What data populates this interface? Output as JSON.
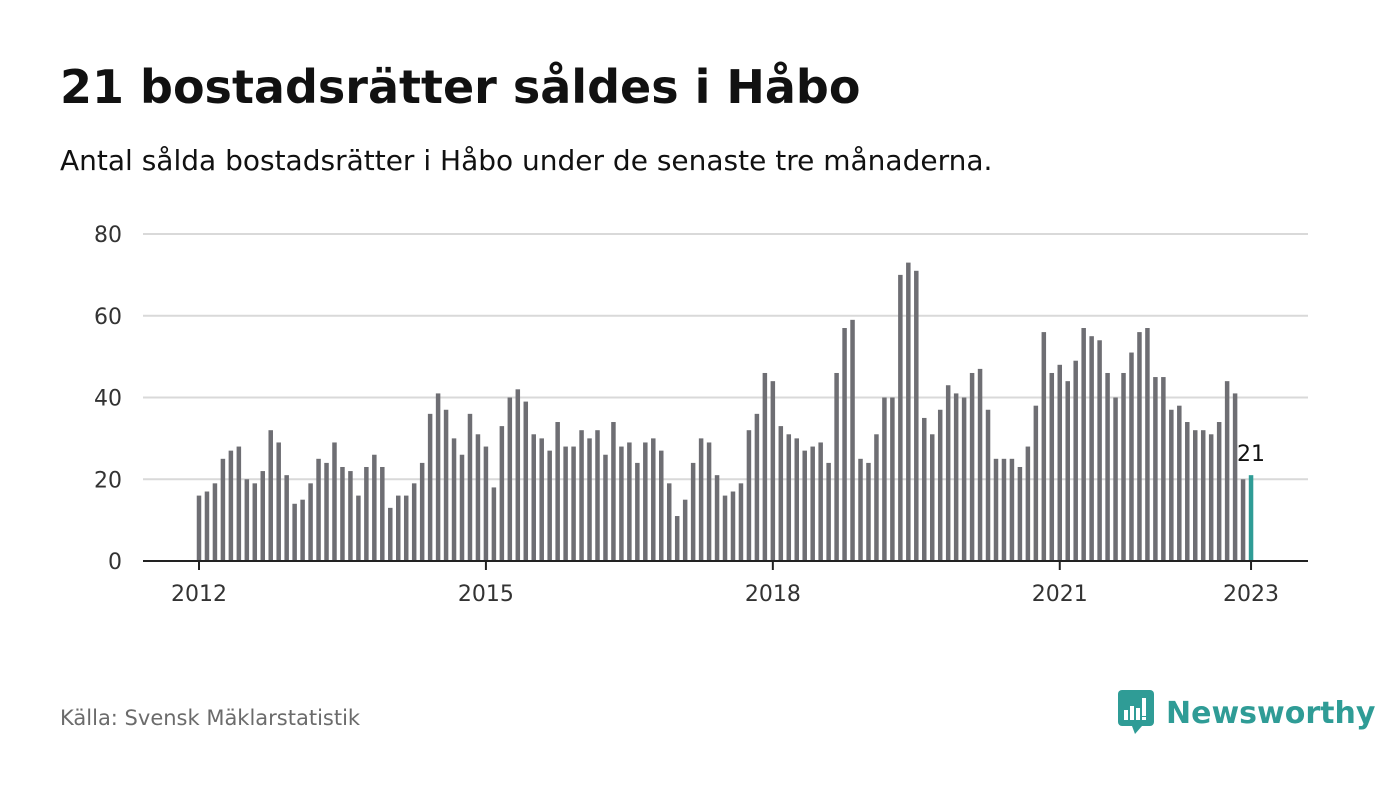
{
  "title": "21 bostadsrätter såldes i Håbo",
  "subtitle": "Antal sålda bostadsrätter i Håbo under de senaste tre månaderna.",
  "source": "Källa: Svensk Mäklarstatistik",
  "brand": {
    "name": "Newsworthy",
    "color": "#2f9c96",
    "icon": "newsworthy-bar-chart-icon"
  },
  "colors": {
    "bar": "#6e6e73",
    "highlight": "#2f9c96",
    "grid": "#d9d9d9",
    "axis": "#222222"
  },
  "chart_data": {
    "type": "bar",
    "title": "21 bostadsrätter såldes i Håbo",
    "subtitle": "Antal sålda bostadsrätter i Håbo under de senaste tre månaderna.",
    "x_start": "2012-01",
    "x_interval": "month",
    "x_ticks": [
      "2012",
      "2015",
      "2018",
      "2021",
      "2023"
    ],
    "y_ticks": [
      0,
      20,
      40,
      60,
      80
    ],
    "ylim": [
      0,
      80
    ],
    "grid": true,
    "highlight_last": true,
    "last_label": "21",
    "values": [
      16,
      17,
      19,
      25,
      27,
      28,
      20,
      19,
      22,
      32,
      29,
      21,
      14,
      15,
      19,
      25,
      24,
      29,
      23,
      22,
      16,
      23,
      26,
      23,
      13,
      16,
      16,
      19,
      24,
      36,
      41,
      37,
      30,
      26,
      36,
      31,
      28,
      18,
      33,
      40,
      42,
      39,
      31,
      30,
      27,
      34,
      28,
      28,
      32,
      30,
      32,
      26,
      34,
      28,
      29,
      24,
      29,
      30,
      27,
      19,
      11,
      15,
      24,
      30,
      29,
      21,
      16,
      17,
      19,
      32,
      36,
      46,
      44,
      33,
      31,
      30,
      27,
      28,
      29,
      24,
      46,
      57,
      59,
      25,
      24,
      31,
      40,
      40,
      70,
      73,
      71,
      35,
      31,
      37,
      43,
      41,
      40,
      46,
      47,
      37,
      25,
      25,
      25,
      23,
      28,
      38,
      56,
      46,
      48,
      44,
      49,
      57,
      55,
      54,
      46,
      40,
      46,
      51,
      56,
      57,
      45,
      45,
      37,
      38,
      34,
      32,
      32,
      31,
      34,
      44,
      41,
      20,
      21
    ]
  }
}
